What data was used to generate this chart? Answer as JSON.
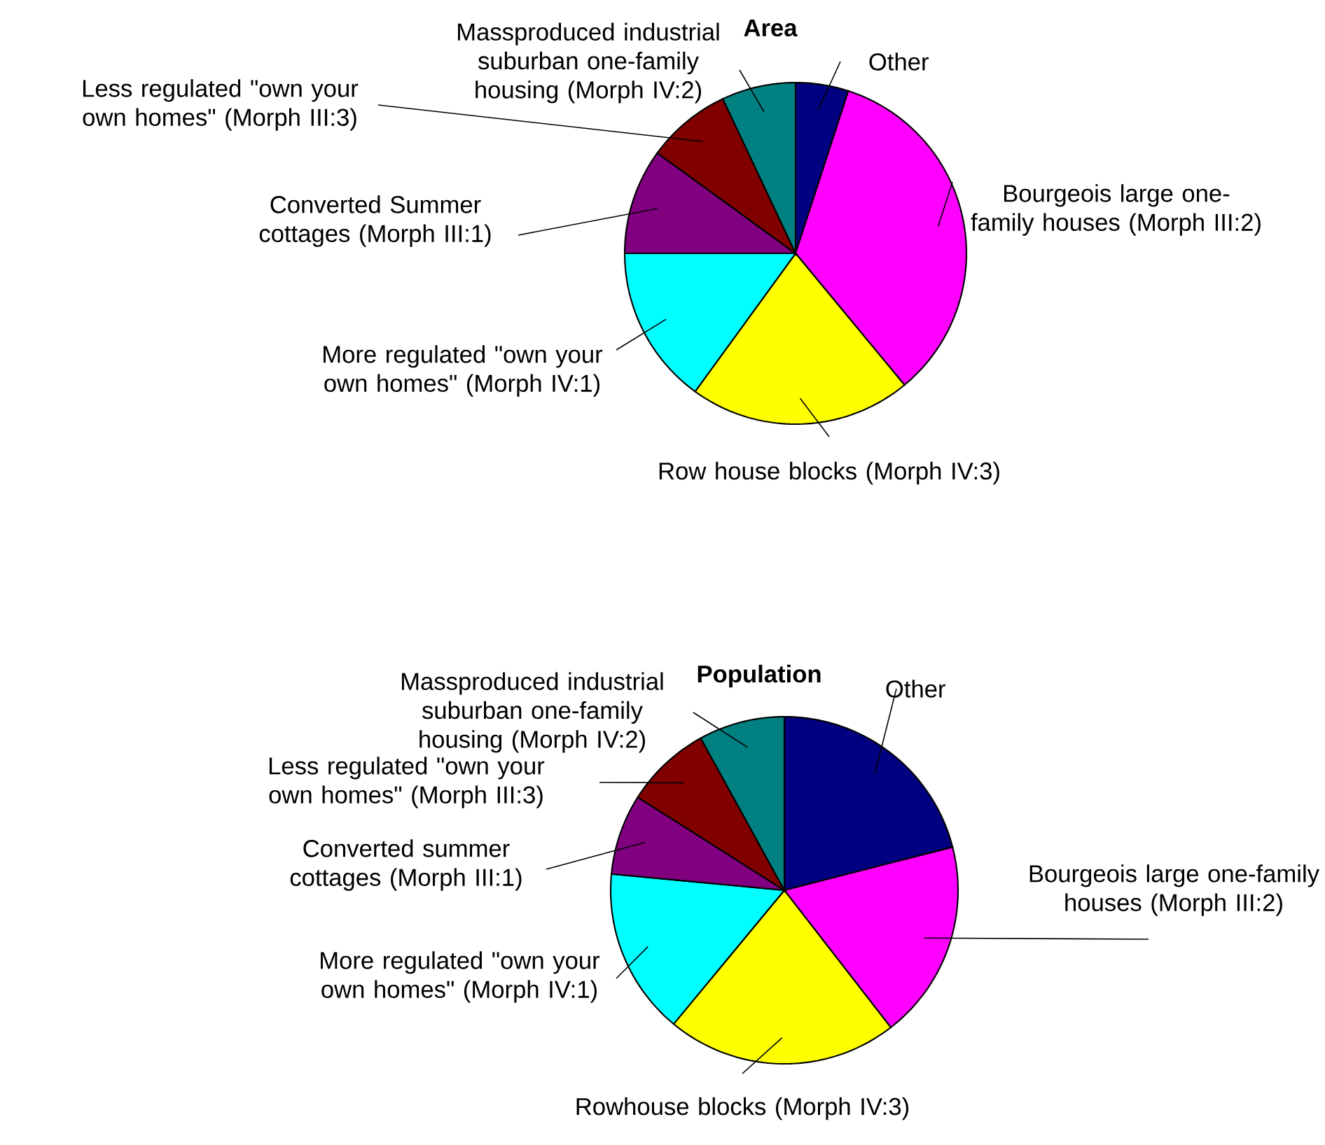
{
  "chart_data": [
    {
      "type": "pie",
      "title": "Area",
      "categories": [
        "Other",
        "Bourgeois large one-family houses (Morph III:2)",
        "Row house blocks (Morph IV:3)",
        "More regulated \"own your own homes\" (Morph IV:1)",
        "Converted Summer cottages (Morph III:1)",
        "Less regulated \"own your own homes\" (Morph III:3)",
        "Massproduced industrial suburban one-family housing (Morph IV:2)"
      ],
      "values": [
        5,
        34,
        21,
        15,
        10,
        8,
        7
      ],
      "colors": [
        "#000080",
        "#ff00ff",
        "#ffff00",
        "#00ffff",
        "#800080",
        "#800000",
        "#008080"
      ]
    },
    {
      "type": "pie",
      "title": "Population",
      "categories": [
        "Other",
        "Bourgeois large one-family houses (Morph III:2)",
        "Rowhouse blocks (Morph IV:3)",
        "More regulated \"own your own homes\" (Morph IV:1)",
        "Converted summer cottages (Morph III:1)",
        "Less regulated \"own your own homes\" (Morph III:3)",
        "Massproduced industrial suburban one-family housing (Morph IV:2)"
      ],
      "values": [
        21,
        18.5,
        21.5,
        15.5,
        7.5,
        8,
        8
      ],
      "colors": [
        "#000080",
        "#ff00ff",
        "#ffff00",
        "#00ffff",
        "#800080",
        "#800000",
        "#008080"
      ]
    }
  ]
}
